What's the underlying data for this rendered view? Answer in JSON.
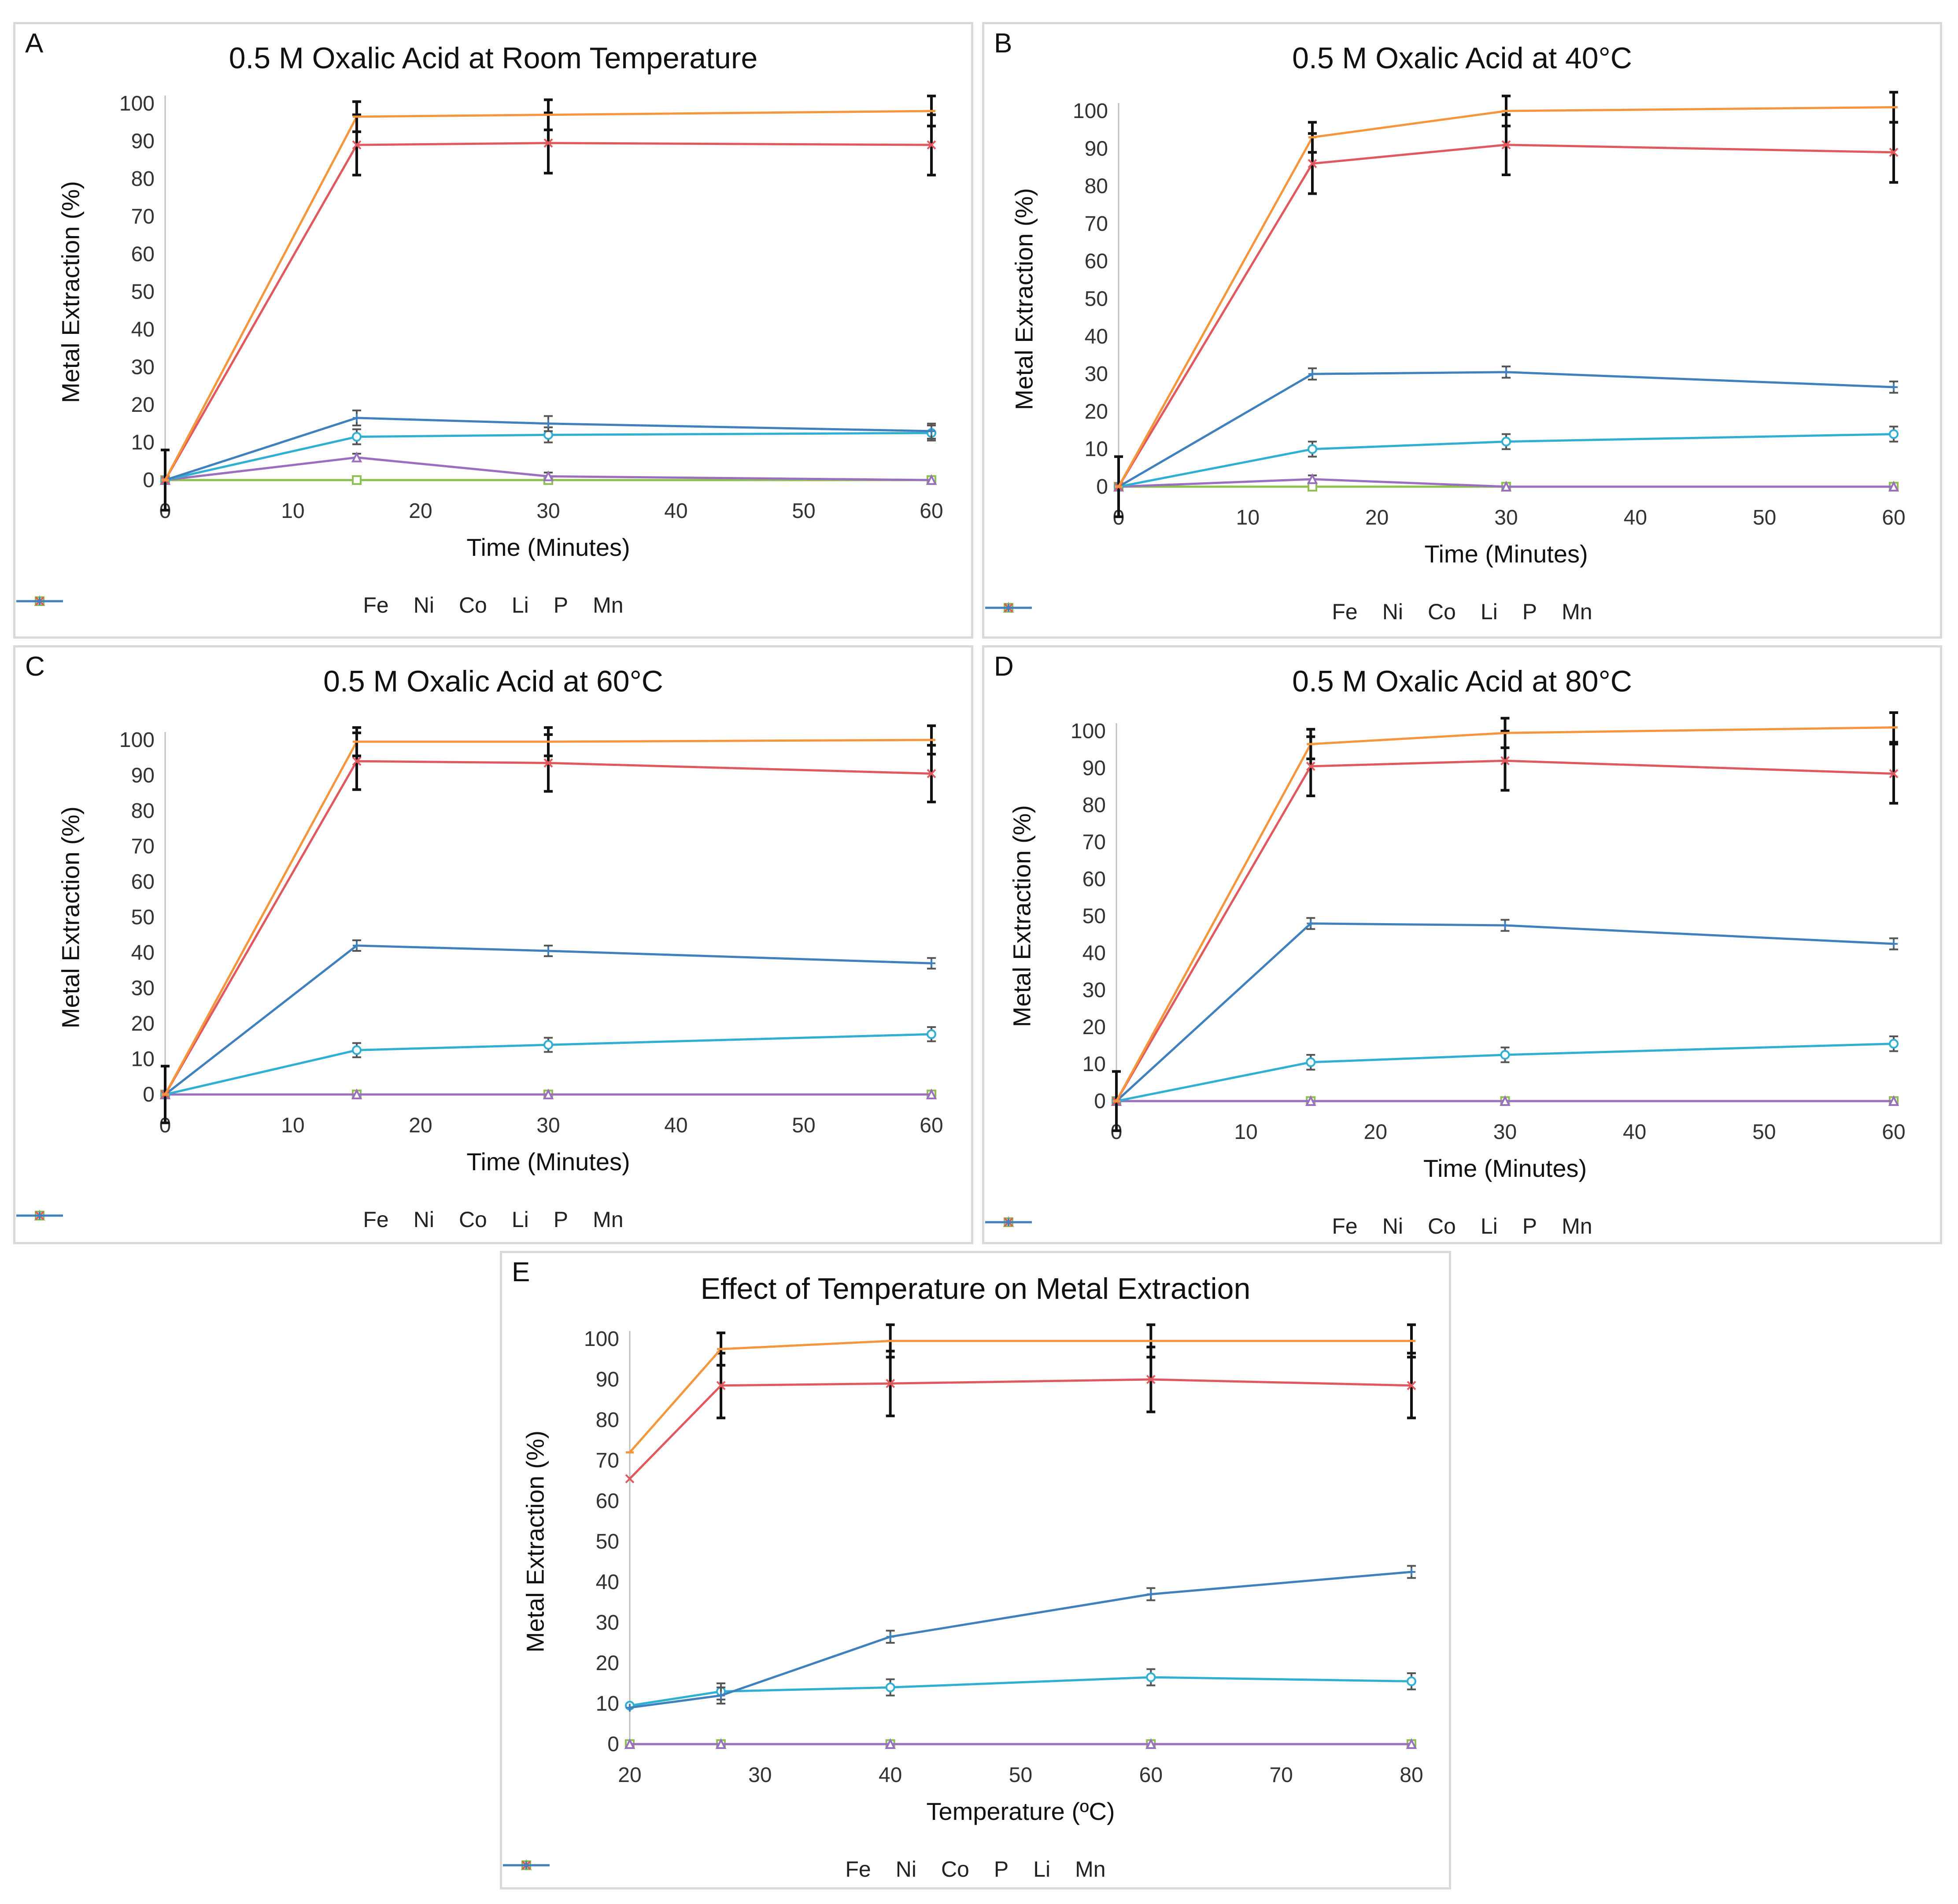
{
  "colors": {
    "Fe": "#2fb0d3",
    "Ni": "#9b6fc0",
    "Co": "#8dc152",
    "Li": "#e0595e",
    "P": "#f5963c",
    "Mn": "#3f80bd",
    "errorbar": "#111111",
    "axis": "#bfbfbf"
  },
  "chart_data": [
    {
      "letter": "A",
      "type": "line",
      "title": "0.5 M Oxalic Acid at Room Temperature",
      "xlabel": "Time (Minutes)",
      "ylabel": "Metal Extraction (%)",
      "xlim": [
        0,
        60
      ],
      "ylim": [
        0,
        100
      ],
      "xticks": [
        0,
        10,
        20,
        30,
        40,
        50,
        60
      ],
      "yticks": [
        0,
        10,
        20,
        30,
        40,
        50,
        60,
        70,
        80,
        90,
        100
      ],
      "legend": [
        {
          "label": "Fe",
          "color": "#2fb0d3",
          "marker": "circle"
        },
        {
          "label": "Ni",
          "color": "#9b6fc0",
          "marker": "triangle"
        },
        {
          "label": "Co",
          "color": "#8dc152",
          "marker": "square"
        },
        {
          "label": "Li",
          "color": "#e0595e",
          "marker": "x"
        },
        {
          "label": "P",
          "color": "#f5963c",
          "marker": "dash"
        },
        {
          "label": "Mn",
          "color": "#3f80bd",
          "marker": "plus"
        }
      ],
      "series": [
        {
          "name": "Fe",
          "x": [
            0,
            15,
            30,
            60
          ],
          "y": [
            0,
            11.5,
            12,
            12.5
          ],
          "err": [
            0,
            2,
            2,
            2
          ]
        },
        {
          "name": "Ni",
          "x": [
            0,
            15,
            30,
            60
          ],
          "y": [
            0,
            6,
            1,
            0
          ],
          "err": [
            0,
            1,
            1,
            0
          ]
        },
        {
          "name": "Co",
          "x": [
            0,
            15,
            30,
            60
          ],
          "y": [
            0,
            0,
            0,
            0
          ],
          "err": [
            0,
            0,
            0,
            0
          ]
        },
        {
          "name": "Li",
          "x": [
            0,
            15,
            30,
            60
          ],
          "y": [
            0,
            89,
            89.5,
            89
          ],
          "err": [
            8,
            8,
            8,
            8
          ]
        },
        {
          "name": "P",
          "x": [
            0,
            15,
            30,
            60
          ],
          "y": [
            0,
            96.5,
            97,
            98
          ],
          "err": [
            0,
            4,
            4,
            4
          ]
        },
        {
          "name": "Mn",
          "x": [
            0,
            15,
            30,
            60
          ],
          "y": [
            0,
            16.5,
            15,
            13
          ],
          "err": [
            0,
            2,
            2,
            2
          ]
        }
      ]
    },
    {
      "letter": "B",
      "type": "line",
      "title": "0.5 M Oxalic Acid at 40°C",
      "xlabel": "Time (Minutes)",
      "ylabel": "Metal Extraction (%)",
      "xlim": [
        0,
        60
      ],
      "ylim": [
        0,
        100
      ],
      "xticks": [
        0,
        10,
        20,
        30,
        40,
        50,
        60
      ],
      "yticks": [
        0,
        10,
        20,
        30,
        40,
        50,
        60,
        70,
        80,
        90,
        100
      ],
      "legend": [
        {
          "label": "Fe",
          "color": "#2fb0d3",
          "marker": "circle"
        },
        {
          "label": "Ni",
          "color": "#9b6fc0",
          "marker": "triangle"
        },
        {
          "label": "Co",
          "color": "#8dc152",
          "marker": "square"
        },
        {
          "label": "Li",
          "color": "#e0595e",
          "marker": "x"
        },
        {
          "label": "P",
          "color": "#f5963c",
          "marker": "dash"
        },
        {
          "label": "Mn",
          "color": "#3f80bd",
          "marker": "plus"
        }
      ],
      "series": [
        {
          "name": "Fe",
          "x": [
            0,
            15,
            30,
            60
          ],
          "y": [
            0,
            10,
            12,
            14
          ],
          "err": [
            0,
            2,
            2,
            2
          ]
        },
        {
          "name": "Ni",
          "x": [
            0,
            15,
            30,
            60
          ],
          "y": [
            0,
            2,
            0,
            0
          ],
          "err": [
            0,
            1,
            0,
            0
          ]
        },
        {
          "name": "Co",
          "x": [
            0,
            15,
            30,
            60
          ],
          "y": [
            0,
            0,
            0,
            0
          ],
          "err": [
            0,
            0,
            0,
            0
          ]
        },
        {
          "name": "Li",
          "x": [
            0,
            15,
            30,
            60
          ],
          "y": [
            0,
            86,
            91,
            89
          ],
          "err": [
            8,
            8,
            8,
            8
          ]
        },
        {
          "name": "P",
          "x": [
            0,
            15,
            30,
            60
          ],
          "y": [
            0,
            93,
            100,
            101
          ],
          "err": [
            0,
            4,
            4,
            4
          ]
        },
        {
          "name": "Mn",
          "x": [
            0,
            15,
            30,
            60
          ],
          "y": [
            0,
            30,
            30.5,
            26.5
          ],
          "err": [
            0,
            1.5,
            1.5,
            1.5
          ]
        }
      ]
    },
    {
      "letter": "C",
      "type": "line",
      "title": "0.5 M Oxalic Acid at 60°C",
      "xlabel": "Time (Minutes)",
      "ylabel": "Metal Extraction (%)",
      "xlim": [
        0,
        60
      ],
      "ylim": [
        0,
        100
      ],
      "xticks": [
        0,
        10,
        20,
        30,
        40,
        50,
        60
      ],
      "yticks": [
        0,
        10,
        20,
        30,
        40,
        50,
        60,
        70,
        80,
        90,
        100
      ],
      "legend": [
        {
          "label": "Fe",
          "color": "#2fb0d3",
          "marker": "circle"
        },
        {
          "label": "Ni",
          "color": "#9b6fc0",
          "marker": "triangle"
        },
        {
          "label": "Co",
          "color": "#8dc152",
          "marker": "square"
        },
        {
          "label": "Li",
          "color": "#e0595e",
          "marker": "x"
        },
        {
          "label": "P",
          "color": "#f5963c",
          "marker": "dash"
        },
        {
          "label": "Mn",
          "color": "#3f80bd",
          "marker": "plus"
        }
      ],
      "series": [
        {
          "name": "Fe",
          "x": [
            0,
            15,
            30,
            60
          ],
          "y": [
            0,
            12.5,
            14,
            17
          ],
          "err": [
            0,
            2,
            2,
            2
          ]
        },
        {
          "name": "Ni",
          "x": [
            0,
            15,
            30,
            60
          ],
          "y": [
            0,
            0,
            0,
            0
          ],
          "err": [
            0,
            0,
            0,
            0
          ]
        },
        {
          "name": "Co",
          "x": [
            0,
            15,
            30,
            60
          ],
          "y": [
            0,
            0,
            0,
            0
          ],
          "err": [
            0,
            0,
            0,
            0
          ]
        },
        {
          "name": "Li",
          "x": [
            0,
            15,
            30,
            60
          ],
          "y": [
            0,
            94,
            93.5,
            90.5
          ],
          "err": [
            8,
            8,
            8,
            8
          ]
        },
        {
          "name": "P",
          "x": [
            0,
            15,
            30,
            60
          ],
          "y": [
            0,
            99.5,
            99.5,
            100
          ],
          "err": [
            0,
            4,
            4,
            4
          ]
        },
        {
          "name": "Mn",
          "x": [
            0,
            15,
            30,
            60
          ],
          "y": [
            0,
            42,
            40.5,
            37
          ],
          "err": [
            0,
            1.5,
            1.5,
            1.5
          ]
        }
      ]
    },
    {
      "letter": "D",
      "type": "line",
      "title": "0.5 M Oxalic Acid at 80°C",
      "xlabel": "Time (Minutes)",
      "ylabel": "Metal Extraction (%)",
      "xlim": [
        0,
        60
      ],
      "ylim": [
        0,
        100
      ],
      "xticks": [
        0,
        10,
        20,
        30,
        40,
        50,
        60
      ],
      "yticks": [
        0,
        10,
        20,
        30,
        40,
        50,
        60,
        70,
        80,
        90,
        100
      ],
      "legend": [
        {
          "label": "Fe",
          "color": "#2fb0d3",
          "marker": "circle"
        },
        {
          "label": "Ni",
          "color": "#9b6fc0",
          "marker": "triangle"
        },
        {
          "label": "Co",
          "color": "#8dc152",
          "marker": "square"
        },
        {
          "label": "Li",
          "color": "#e0595e",
          "marker": "x"
        },
        {
          "label": "P",
          "color": "#f5963c",
          "marker": "dash"
        },
        {
          "label": "Mn",
          "color": "#3f80bd",
          "marker": "plus"
        }
      ],
      "series": [
        {
          "name": "Fe",
          "x": [
            0,
            15,
            30,
            60
          ],
          "y": [
            0,
            10.5,
            12.5,
            15.5
          ],
          "err": [
            0,
            2,
            2,
            2
          ]
        },
        {
          "name": "Ni",
          "x": [
            0,
            15,
            30,
            60
          ],
          "y": [
            0,
            0,
            0,
            0
          ],
          "err": [
            0,
            0,
            0,
            0
          ]
        },
        {
          "name": "Co",
          "x": [
            0,
            15,
            30,
            60
          ],
          "y": [
            0,
            0,
            0,
            0
          ],
          "err": [
            0,
            0,
            0,
            0
          ]
        },
        {
          "name": "Li",
          "x": [
            0,
            15,
            30,
            60
          ],
          "y": [
            0,
            90.5,
            92,
            88.5
          ],
          "err": [
            8,
            8,
            8,
            8
          ]
        },
        {
          "name": "P",
          "x": [
            0,
            15,
            30,
            60
          ],
          "y": [
            0,
            96.5,
            99.5,
            101
          ],
          "err": [
            0,
            4,
            4,
            4
          ]
        },
        {
          "name": "Mn",
          "x": [
            0,
            15,
            30,
            60
          ],
          "y": [
            0,
            48,
            47.5,
            42.5
          ],
          "err": [
            0,
            1.5,
            1.5,
            1.5
          ]
        }
      ]
    },
    {
      "letter": "E",
      "type": "line",
      "title": "Effect of Temperature on Metal Extraction",
      "xlabel": "Temperature (ºC)",
      "ylabel": "Metal Extraction (%)",
      "xlim": [
        20,
        80
      ],
      "ylim": [
        0,
        100
      ],
      "xticks": [
        20,
        30,
        40,
        50,
        60,
        70,
        80
      ],
      "yticks": [
        0,
        10,
        20,
        30,
        40,
        50,
        60,
        70,
        80,
        90,
        100
      ],
      "legend": [
        {
          "label": "Fe",
          "color": "#2fb0d3",
          "marker": "circle"
        },
        {
          "label": "Ni",
          "color": "#9b6fc0",
          "marker": "triangle"
        },
        {
          "label": "Co",
          "color": "#8dc152",
          "marker": "square"
        },
        {
          "label": "P",
          "color": "#f5963c",
          "marker": "dash"
        },
        {
          "label": "Li",
          "color": "#e0595e",
          "marker": "x"
        },
        {
          "label": "Mn",
          "color": "#3f80bd",
          "marker": "plus"
        }
      ],
      "series": [
        {
          "name": "Fe",
          "x": [
            20,
            27,
            40,
            60,
            80
          ],
          "y": [
            9.5,
            13,
            14,
            16.5,
            15.5
          ],
          "err": [
            0,
            2,
            2,
            2,
            2
          ]
        },
        {
          "name": "Ni",
          "x": [
            20,
            27,
            40,
            60,
            80
          ],
          "y": [
            0,
            0,
            0,
            0,
            0
          ],
          "err": [
            0,
            0,
            0,
            0,
            0
          ]
        },
        {
          "name": "Co",
          "x": [
            20,
            27,
            40,
            60,
            80
          ],
          "y": [
            0,
            0,
            0,
            0,
            0
          ],
          "err": [
            0,
            0,
            0,
            0,
            0
          ]
        },
        {
          "name": "P",
          "x": [
            20,
            27,
            40,
            60,
            80
          ],
          "y": [
            72,
            97.5,
            99.5,
            99.5,
            99.5
          ],
          "err": [
            0,
            4,
            4,
            4,
            4
          ]
        },
        {
          "name": "Li",
          "x": [
            20,
            27,
            40,
            60,
            80
          ],
          "y": [
            65.5,
            88.5,
            89,
            90,
            88.5
          ],
          "err": [
            0,
            8,
            8,
            8,
            8
          ]
        },
        {
          "name": "Mn",
          "x": [
            20,
            27,
            40,
            60,
            80
          ],
          "y": [
            9,
            12,
            26.5,
            37,
            42.5
          ],
          "err": [
            0,
            2,
            1.5,
            1.5,
            1.5
          ]
        }
      ]
    }
  ]
}
